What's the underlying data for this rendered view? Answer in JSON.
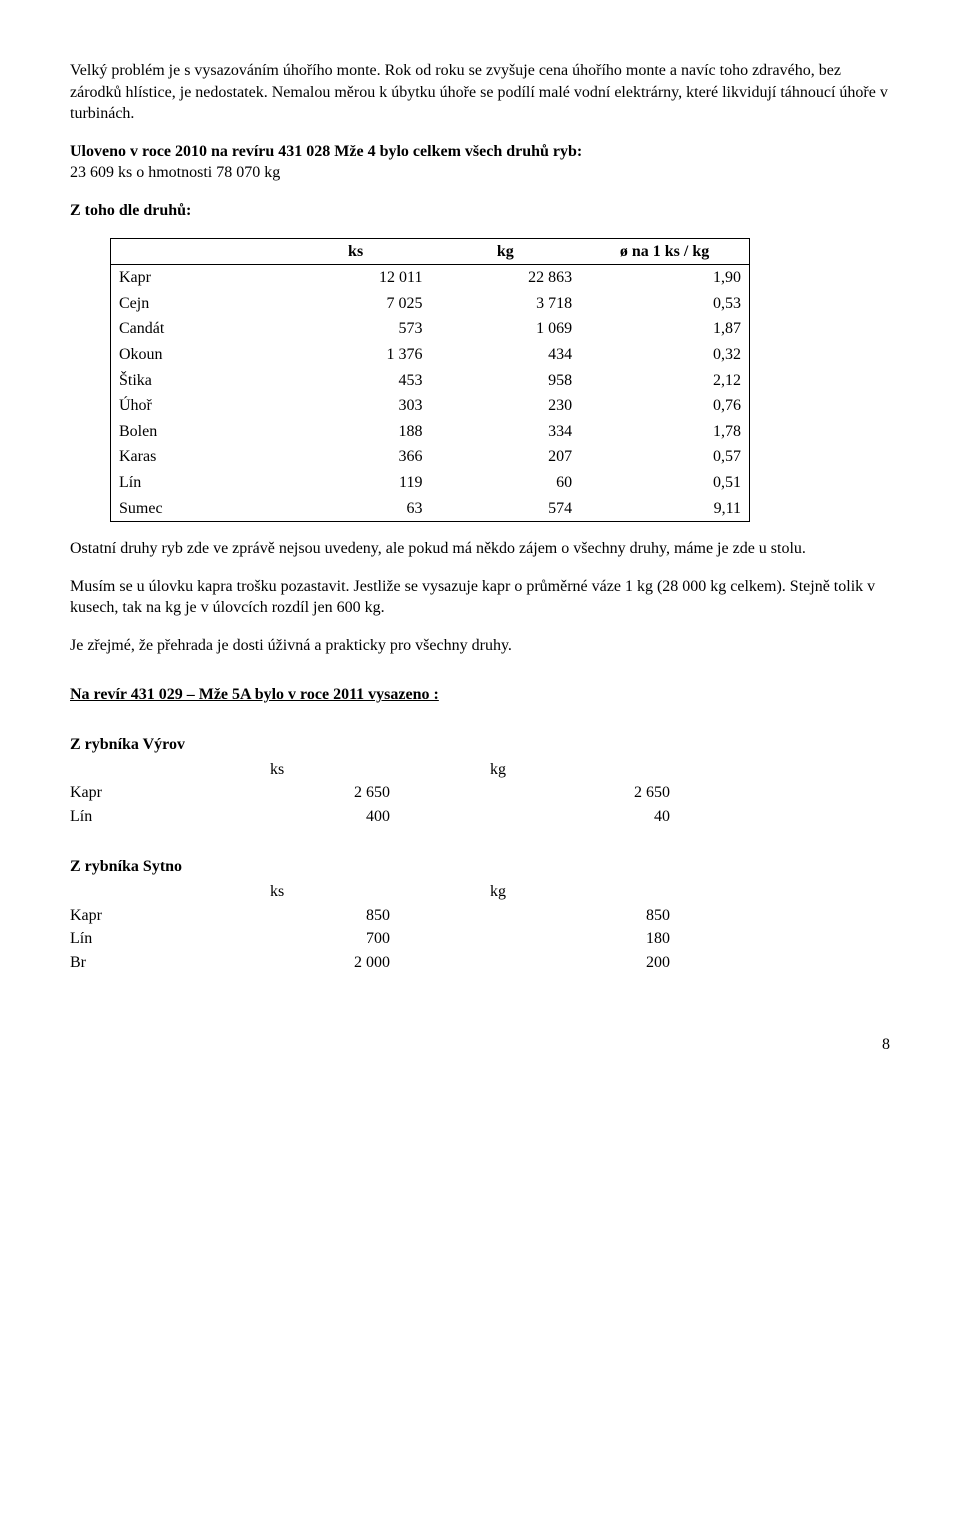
{
  "paragraphs": {
    "p1": "Velký problém je s vysazováním úhořího monte. Rok od roku se zvyšuje cena úhořího monte a navíc toho zdravého, bez zárodků hlístice, je nedostatek. Nemalou měrou k úbytku úhoře se podílí malé vodní elektrárny, které likvidují táhnoucí úhoře v turbinách.",
    "p2a": "Uloveno v roce 2010 na revíru 431 028 Mže 4 bylo celkem všech druhů ryb:",
    "p2b": "23 609 ks o hmotnosti 78 070 kg",
    "p3": "Z toho dle druhů:",
    "p4": "Ostatní druhy ryb zde ve zprávě nejsou uvedeny, ale pokud má někdo zájem o všechny druhy, máme je zde u stolu.",
    "p5": "Musím se u úlovku kapra trošku pozastavit. Jestliže se vysazuje kapr o průměrné váze 1 kg (28 000 kg celkem). Stejně tolik v kusech, tak na kg je v úlovcích rozdíl jen 600 kg.",
    "p6": "Je zřejmé, že přehrada je dosti úživná a prakticky pro všechny druhy.",
    "heading2": "Na revír 431 029 – Mže 5A bylo v roce 2011 vysazeno :"
  },
  "fish_table": {
    "headers": {
      "h1": "",
      "h2": "ks",
      "h3": "kg",
      "h4": "ø na 1 ks / kg"
    },
    "rows": [
      {
        "name": "Kapr",
        "ks": "12 011",
        "kg": "22 863",
        "avg": "1,90"
      },
      {
        "name": "Cejn",
        "ks": "7 025",
        "kg": "3 718",
        "avg": "0,53"
      },
      {
        "name": "Candát",
        "ks": "573",
        "kg": "1 069",
        "avg": "1,87"
      },
      {
        "name": "Okoun",
        "ks": "1 376",
        "kg": "434",
        "avg": "0,32"
      },
      {
        "name": "Štika",
        "ks": "453",
        "kg": "958",
        "avg": "2,12"
      },
      {
        "name": "Úhoř",
        "ks": "303",
        "kg": "230",
        "avg": "0,76"
      },
      {
        "name": "Bolen",
        "ks": "188",
        "kg": "334",
        "avg": "1,78"
      },
      {
        "name": "Karas",
        "ks": "366",
        "kg": "207",
        "avg": "0,57"
      },
      {
        "name": "Lín",
        "ks": "119",
        "kg": "60",
        "avg": "0,51"
      },
      {
        "name": "Sumec",
        "ks": "63",
        "kg": "574",
        "avg": "9,11"
      }
    ]
  },
  "vyrov": {
    "title": "Z rybníka Výrov",
    "h_ks": "ks",
    "h_kg": "kg",
    "rows": [
      {
        "name": "Kapr",
        "ks": "2 650",
        "kg": "2 650"
      },
      {
        "name": "Lín",
        "ks": "400",
        "kg": "40"
      }
    ]
  },
  "sytno": {
    "title": "Z rybníka Sytno",
    "h_ks": "ks",
    "h_kg": "kg",
    "rows": [
      {
        "name": "Kapr",
        "ks": "850",
        "kg": "850"
      },
      {
        "name": "Lín",
        "ks": "700",
        "kg": "180"
      },
      {
        "name": "Br",
        "ks": "2 000",
        "kg": "200"
      }
    ]
  },
  "page_number": "8"
}
